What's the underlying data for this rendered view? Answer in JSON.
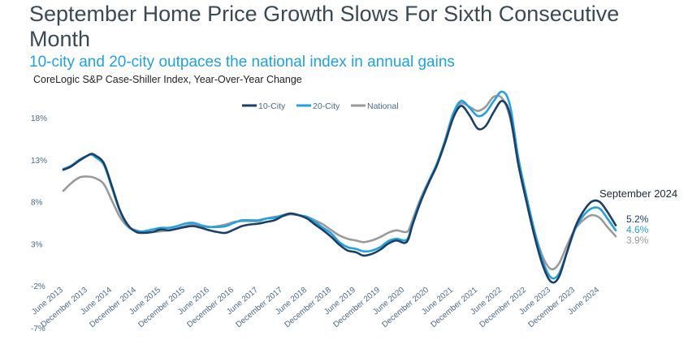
{
  "header": {
    "title": "September Home Price Growth Slows For Sixth Consecutive Month",
    "subtitle": "10-city and 20-city outpaces the national index in annual gains",
    "source": "CoreLogic S&P Case-Shiller Index, Year-Over-Year Change"
  },
  "chart_data": {
    "type": "line",
    "title": "September Home Price Growth Slows For Sixth Consecutive Month",
    "subtitle": "10-city and 20-city outpaces the national index in annual gains",
    "ylabel": "CoreLogic S&P Case-Shiller Index, Year-Over-Year Change",
    "xlabel": "",
    "ylim": [
      -7,
      21
    ],
    "xlim": [
      2013.42,
      2024.75
    ],
    "yticks": [
      18,
      13,
      8,
      3,
      -2,
      -7
    ],
    "ytick_labels": [
      "18%",
      "13%",
      "8%",
      "3%",
      "-2%",
      "-7%"
    ],
    "xticks": [
      {
        "t": 2013.42,
        "label": "June 2013"
      },
      {
        "t": 2013.92,
        "label": "December 2013"
      },
      {
        "t": 2014.42,
        "label": "June 2014"
      },
      {
        "t": 2014.92,
        "label": "December 2014"
      },
      {
        "t": 2015.42,
        "label": "June 2015"
      },
      {
        "t": 2015.92,
        "label": "December 2015"
      },
      {
        "t": 2016.42,
        "label": "June 2016"
      },
      {
        "t": 2016.92,
        "label": "December 2016"
      },
      {
        "t": 2017.42,
        "label": "June 2017"
      },
      {
        "t": 2017.92,
        "label": "December 2017"
      },
      {
        "t": 2018.42,
        "label": "June 2018"
      },
      {
        "t": 2018.92,
        "label": "December 2018"
      },
      {
        "t": 2019.42,
        "label": "June 2019"
      },
      {
        "t": 2019.92,
        "label": "December 2019"
      },
      {
        "t": 2020.42,
        "label": "June 2020"
      },
      {
        "t": 2020.92,
        "label": "December 2020"
      },
      {
        "t": 2021.42,
        "label": "June 2021"
      },
      {
        "t": 2021.92,
        "label": "December 2021"
      },
      {
        "t": 2022.42,
        "label": "June 2022"
      },
      {
        "t": 2022.92,
        "label": "December 2022"
      },
      {
        "t": 2023.42,
        "label": "June 2023"
      },
      {
        "t": 2023.92,
        "label": "December 2023"
      },
      {
        "t": 2024.42,
        "label": "June 2024"
      }
    ],
    "legend_position": "top-center",
    "annotation": "September 2024",
    "series": [
      {
        "name": "10-City",
        "color": "#1b3f66",
        "end_label": "5.2%",
        "points": [
          [
            2013.42,
            11.8
          ],
          [
            2013.58,
            12.2
          ],
          [
            2013.75,
            12.9
          ],
          [
            2013.92,
            13.5
          ],
          [
            2014.0,
            13.7
          ],
          [
            2014.08,
            13.5
          ],
          [
            2014.25,
            12.6
          ],
          [
            2014.42,
            9.8
          ],
          [
            2014.58,
            7.0
          ],
          [
            2014.75,
            5.2
          ],
          [
            2014.92,
            4.4
          ],
          [
            2015.08,
            4.3
          ],
          [
            2015.25,
            4.4
          ],
          [
            2015.42,
            4.7
          ],
          [
            2015.58,
            4.6
          ],
          [
            2015.75,
            4.8
          ],
          [
            2015.92,
            5.0
          ],
          [
            2016.08,
            5.1
          ],
          [
            2016.25,
            4.9
          ],
          [
            2016.42,
            4.6
          ],
          [
            2016.58,
            4.4
          ],
          [
            2016.75,
            4.3
          ],
          [
            2016.92,
            4.7
          ],
          [
            2017.08,
            5.1
          ],
          [
            2017.25,
            5.3
          ],
          [
            2017.42,
            5.4
          ],
          [
            2017.58,
            5.6
          ],
          [
            2017.75,
            5.8
          ],
          [
            2017.92,
            6.3
          ],
          [
            2018.08,
            6.6
          ],
          [
            2018.25,
            6.4
          ],
          [
            2018.42,
            6.0
          ],
          [
            2018.58,
            5.3
          ],
          [
            2018.75,
            4.6
          ],
          [
            2018.92,
            3.8
          ],
          [
            2019.08,
            2.9
          ],
          [
            2019.25,
            2.2
          ],
          [
            2019.42,
            2.0
          ],
          [
            2019.58,
            1.6
          ],
          [
            2019.75,
            1.8
          ],
          [
            2019.92,
            2.3
          ],
          [
            2020.08,
            3.0
          ],
          [
            2020.25,
            3.4
          ],
          [
            2020.42,
            3.1
          ],
          [
            2020.5,
            3.6
          ],
          [
            2020.58,
            5.2
          ],
          [
            2020.75,
            8.0
          ],
          [
            2020.92,
            10.3
          ],
          [
            2021.08,
            12.3
          ],
          [
            2021.25,
            15.0
          ],
          [
            2021.42,
            18.0
          ],
          [
            2021.58,
            19.4
          ],
          [
            2021.75,
            18.3
          ],
          [
            2021.92,
            16.7
          ],
          [
            2022.08,
            17.0
          ],
          [
            2022.25,
            18.7
          ],
          [
            2022.42,
            20.0
          ],
          [
            2022.58,
            18.4
          ],
          [
            2022.75,
            12.5
          ],
          [
            2022.92,
            8.0
          ],
          [
            2023.08,
            4.0
          ],
          [
            2023.25,
            0.5
          ],
          [
            2023.42,
            -1.5
          ],
          [
            2023.58,
            -1.0
          ],
          [
            2023.75,
            2.0
          ],
          [
            2023.92,
            5.0
          ],
          [
            2024.08,
            6.8
          ],
          [
            2024.25,
            8.0
          ],
          [
            2024.42,
            8.0
          ],
          [
            2024.58,
            6.8
          ],
          [
            2024.75,
            5.2
          ]
        ]
      },
      {
        "name": "20-City",
        "color": "#22a0e0",
        "end_label": "4.6%",
        "points": [
          [
            2013.42,
            11.9
          ],
          [
            2013.58,
            12.3
          ],
          [
            2013.75,
            13.0
          ],
          [
            2013.92,
            13.5
          ],
          [
            2014.0,
            13.6
          ],
          [
            2014.08,
            13.3
          ],
          [
            2014.25,
            12.4
          ],
          [
            2014.42,
            9.6
          ],
          [
            2014.58,
            6.9
          ],
          [
            2014.75,
            5.1
          ],
          [
            2014.92,
            4.5
          ],
          [
            2015.08,
            4.5
          ],
          [
            2015.25,
            4.7
          ],
          [
            2015.42,
            4.9
          ],
          [
            2015.58,
            4.9
          ],
          [
            2015.75,
            5.1
          ],
          [
            2015.92,
            5.4
          ],
          [
            2016.08,
            5.5
          ],
          [
            2016.25,
            5.2
          ],
          [
            2016.42,
            5.0
          ],
          [
            2016.58,
            5.0
          ],
          [
            2016.75,
            5.1
          ],
          [
            2016.92,
            5.5
          ],
          [
            2017.08,
            5.8
          ],
          [
            2017.25,
            5.8
          ],
          [
            2017.42,
            5.8
          ],
          [
            2017.58,
            6.0
          ],
          [
            2017.75,
            6.1
          ],
          [
            2017.92,
            6.4
          ],
          [
            2018.08,
            6.6
          ],
          [
            2018.25,
            6.4
          ],
          [
            2018.42,
            6.2
          ],
          [
            2018.58,
            5.6
          ],
          [
            2018.75,
            4.9
          ],
          [
            2018.92,
            4.2
          ],
          [
            2019.08,
            3.2
          ],
          [
            2019.25,
            2.6
          ],
          [
            2019.42,
            2.4
          ],
          [
            2019.58,
            2.1
          ],
          [
            2019.75,
            2.2
          ],
          [
            2019.92,
            2.6
          ],
          [
            2020.08,
            3.3
          ],
          [
            2020.25,
            3.6
          ],
          [
            2020.42,
            3.4
          ],
          [
            2020.5,
            3.8
          ],
          [
            2020.58,
            5.4
          ],
          [
            2020.75,
            8.2
          ],
          [
            2020.92,
            10.5
          ],
          [
            2021.08,
            12.5
          ],
          [
            2021.25,
            15.3
          ],
          [
            2021.42,
            18.5
          ],
          [
            2021.58,
            20.0
          ],
          [
            2021.75,
            19.2
          ],
          [
            2021.92,
            18.2
          ],
          [
            2022.08,
            18.6
          ],
          [
            2022.25,
            20.0
          ],
          [
            2022.42,
            21.1
          ],
          [
            2022.58,
            19.5
          ],
          [
            2022.75,
            13.3
          ],
          [
            2022.92,
            8.6
          ],
          [
            2023.08,
            4.6
          ],
          [
            2023.25,
            1.0
          ],
          [
            2023.42,
            -1.0
          ],
          [
            2023.58,
            -0.6
          ],
          [
            2023.75,
            2.0
          ],
          [
            2023.92,
            4.8
          ],
          [
            2024.08,
            6.3
          ],
          [
            2024.25,
            7.2
          ],
          [
            2024.42,
            7.2
          ],
          [
            2024.58,
            6.0
          ],
          [
            2024.75,
            4.6
          ]
        ]
      },
      {
        "name": "National",
        "color": "#9a9a9a",
        "end_label": "3.9%",
        "points": [
          [
            2013.42,
            9.3
          ],
          [
            2013.58,
            10.2
          ],
          [
            2013.75,
            10.9
          ],
          [
            2013.92,
            11.0
          ],
          [
            2014.08,
            10.8
          ],
          [
            2014.25,
            10.1
          ],
          [
            2014.42,
            8.1
          ],
          [
            2014.58,
            6.2
          ],
          [
            2014.75,
            5.0
          ],
          [
            2014.92,
            4.6
          ],
          [
            2015.08,
            4.4
          ],
          [
            2015.25,
            4.4
          ],
          [
            2015.42,
            4.5
          ],
          [
            2015.58,
            4.6
          ],
          [
            2015.75,
            4.8
          ],
          [
            2015.92,
            5.1
          ],
          [
            2016.08,
            5.3
          ],
          [
            2016.25,
            5.1
          ],
          [
            2016.42,
            5.0
          ],
          [
            2016.58,
            5.1
          ],
          [
            2016.75,
            5.3
          ],
          [
            2016.92,
            5.6
          ],
          [
            2017.08,
            5.7
          ],
          [
            2017.25,
            5.7
          ],
          [
            2017.42,
            5.7
          ],
          [
            2017.58,
            6.0
          ],
          [
            2017.75,
            6.2
          ],
          [
            2017.92,
            6.3
          ],
          [
            2018.08,
            6.5
          ],
          [
            2018.25,
            6.4
          ],
          [
            2018.42,
            6.2
          ],
          [
            2018.58,
            5.8
          ],
          [
            2018.75,
            5.3
          ],
          [
            2018.92,
            4.6
          ],
          [
            2019.08,
            4.0
          ],
          [
            2019.25,
            3.6
          ],
          [
            2019.42,
            3.4
          ],
          [
            2019.58,
            3.2
          ],
          [
            2019.75,
            3.4
          ],
          [
            2019.92,
            3.8
          ],
          [
            2020.08,
            4.3
          ],
          [
            2020.25,
            4.6
          ],
          [
            2020.42,
            4.4
          ],
          [
            2020.5,
            4.6
          ],
          [
            2020.58,
            5.8
          ],
          [
            2020.75,
            8.4
          ],
          [
            2020.92,
            10.5
          ],
          [
            2021.08,
            12.3
          ],
          [
            2021.25,
            15.3
          ],
          [
            2021.42,
            18.5
          ],
          [
            2021.58,
            19.7
          ],
          [
            2021.75,
            19.3
          ],
          [
            2021.92,
            18.8
          ],
          [
            2022.08,
            19.3
          ],
          [
            2022.25,
            20.5
          ],
          [
            2022.42,
            20.3
          ],
          [
            2022.58,
            18.0
          ],
          [
            2022.75,
            13.0
          ],
          [
            2022.92,
            8.6
          ],
          [
            2023.08,
            4.6
          ],
          [
            2023.25,
            1.5
          ],
          [
            2023.42,
            0.0
          ],
          [
            2023.58,
            0.6
          ],
          [
            2023.75,
            2.8
          ],
          [
            2023.92,
            4.8
          ],
          [
            2024.08,
            5.8
          ],
          [
            2024.25,
            6.4
          ],
          [
            2024.42,
            6.1
          ],
          [
            2024.58,
            5.0
          ],
          [
            2024.75,
            3.9
          ]
        ]
      }
    ]
  }
}
